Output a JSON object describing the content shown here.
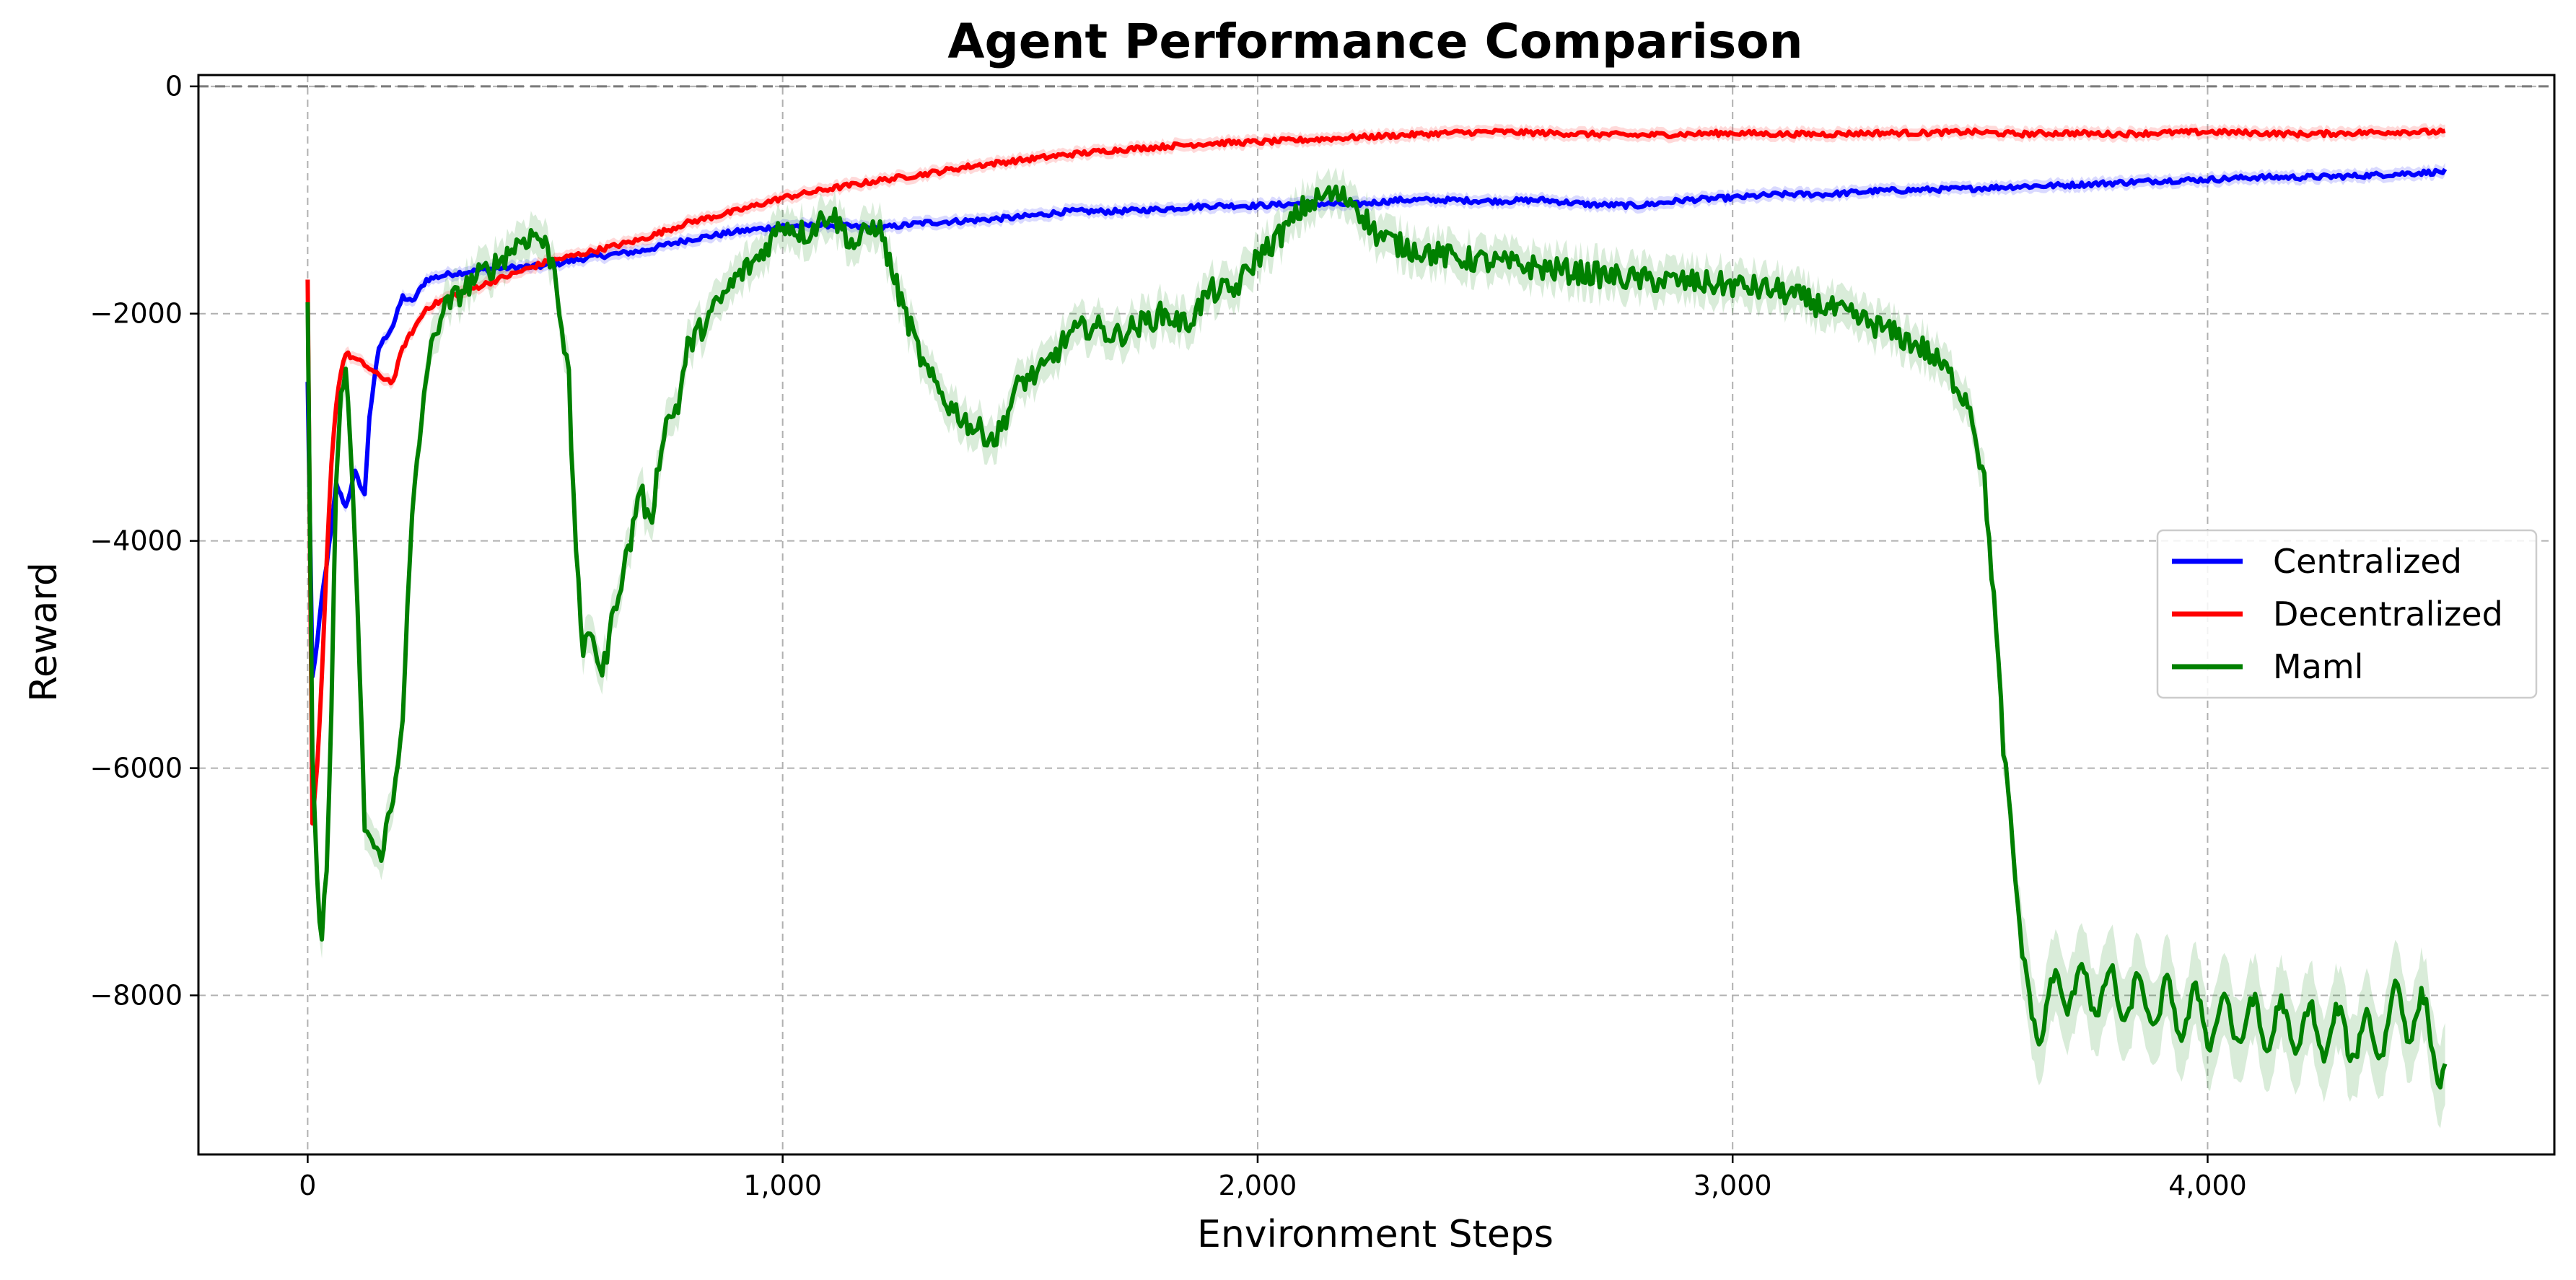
{
  "chart_data": {
    "type": "line",
    "title": "Agent Performance Comparison",
    "xlabel": "Environment Steps",
    "ylabel": "Reward",
    "xlim": [
      -230,
      4730
    ],
    "ylim": [
      -9400,
      100
    ],
    "xticks": [
      0,
      1000,
      2000,
      3000,
      4000
    ],
    "xtick_labels": [
      "0",
      "1,000",
      "2,000",
      "3,000",
      "4,000"
    ],
    "yticks": [
      0,
      -2000,
      -4000,
      -6000,
      -8000
    ],
    "ytick_labels": [
      "0",
      "−2000",
      "−4000",
      "−6000",
      "−8000"
    ],
    "grid": true,
    "reference_line": {
      "y": 0,
      "style": "dashed"
    },
    "legend": {
      "position": "right",
      "entries": [
        "Centralized",
        "Decentralized",
        "Maml"
      ]
    },
    "series": [
      {
        "name": "Centralized",
        "color": "#0000ff",
        "x": [
          0,
          10,
          20,
          30,
          50,
          60,
          80,
          100,
          120,
          130,
          150,
          180,
          200,
          220,
          250,
          300,
          400,
          500,
          600,
          700,
          800,
          900,
          1000,
          1100,
          1200,
          1300,
          1400,
          1500,
          1600,
          1700,
          1800,
          1900,
          2000,
          2100,
          2200,
          2300,
          2400,
          2500,
          2600,
          2700,
          2800,
          2900,
          3000,
          3100,
          3200,
          3300,
          3400,
          3500,
          3600,
          3700,
          3800,
          3900,
          4000,
          4100,
          4200,
          4300,
          4400,
          4500
        ],
        "y": [
          -2600,
          -5200,
          -4900,
          -4500,
          -3900,
          -3500,
          -3700,
          -3400,
          -3600,
          -2900,
          -2300,
          -2100,
          -1850,
          -1900,
          -1700,
          -1650,
          -1600,
          -1580,
          -1500,
          -1450,
          -1350,
          -1280,
          -1230,
          -1220,
          -1250,
          -1200,
          -1180,
          -1150,
          -1100,
          -1100,
          -1080,
          -1050,
          -1050,
          -1030,
          -1040,
          -1000,
          -1000,
          -1010,
          -1000,
          -1040,
          -1050,
          -1000,
          -980,
          -950,
          -950,
          -920,
          -910,
          -900,
          -880,
          -870,
          -850,
          -830,
          -820,
          -800,
          -800,
          -790,
          -770,
          -750
        ]
      },
      {
        "name": "Decentralized",
        "color": "#ff0000",
        "x": [
          0,
          10,
          20,
          30,
          40,
          50,
          60,
          70,
          80,
          100,
          120,
          150,
          180,
          200,
          250,
          300,
          400,
          500,
          600,
          700,
          800,
          900,
          1000,
          1100,
          1200,
          1300,
          1400,
          1500,
          1600,
          1700,
          1800,
          1900,
          2000,
          2100,
          2200,
          2300,
          2400,
          2500,
          2600,
          2700,
          2800,
          2900,
          3000,
          3100,
          3200,
          3300,
          3400,
          3500,
          3600,
          3700,
          3800,
          3900,
          4000,
          4100,
          4200,
          4300,
          4400,
          4500
        ],
        "y": [
          -1700,
          -6500,
          -6000,
          -5200,
          -4200,
          -3300,
          -2800,
          -2500,
          -2350,
          -2400,
          -2450,
          -2550,
          -2600,
          -2300,
          -1950,
          -1850,
          -1700,
          -1550,
          -1450,
          -1350,
          -1200,
          -1100,
          -980,
          -900,
          -830,
          -770,
          -700,
          -650,
          -600,
          -560,
          -530,
          -500,
          -490,
          -470,
          -450,
          -430,
          -410,
          -400,
          -410,
          -420,
          -430,
          -420,
          -410,
          -420,
          -420,
          -410,
          -410,
          -400,
          -420,
          -410,
          -420,
          -410,
          -400,
          -410,
          -420,
          -410,
          -400,
          -400
        ]
      },
      {
        "name": "Maml",
        "color": "#008000",
        "x": [
          0,
          10,
          20,
          30,
          40,
          50,
          60,
          70,
          80,
          100,
          120,
          150,
          180,
          200,
          220,
          250,
          280,
          300,
          350,
          400,
          450,
          480,
          500,
          520,
          550,
          560,
          580,
          600,
          620,
          650,
          680,
          700,
          720,
          750,
          780,
          800,
          850,
          900,
          950,
          1000,
          1050,
          1100,
          1150,
          1200,
          1250,
          1300,
          1350,
          1400,
          1450,
          1500,
          1550,
          1600,
          1650,
          1700,
          1750,
          1800,
          1850,
          1900,
          1950,
          2000,
          2050,
          2100,
          2150,
          2200,
          2250,
          2300,
          2400,
          2500,
          2600,
          2700,
          2800,
          2900,
          3000,
          3100,
          3200,
          3300,
          3400,
          3450,
          3500,
          3530,
          3550,
          3570,
          3600,
          3620,
          3650,
          3700,
          3800,
          3900,
          4000,
          4100,
          4200,
          4300,
          4350,
          4400,
          4450,
          4500
        ],
        "y": [
          -1900,
          -6000,
          -7000,
          -7600,
          -6800,
          -5500,
          -3500,
          -2700,
          -2500,
          -4000,
          -6500,
          -6800,
          -6300,
          -5500,
          -3800,
          -2500,
          -2000,
          -1900,
          -1700,
          -1550,
          -1350,
          -1300,
          -1400,
          -1600,
          -2600,
          -3700,
          -5000,
          -4800,
          -5200,
          -4500,
          -4000,
          -3500,
          -3900,
          -3000,
          -2800,
          -2300,
          -2000,
          -1700,
          -1500,
          -1200,
          -1300,
          -1100,
          -1400,
          -1200,
          -1900,
          -2500,
          -2800,
          -3000,
          -3100,
          -2600,
          -2500,
          -2200,
          -2100,
          -2200,
          -2100,
          -2000,
          -2100,
          -1800,
          -1800,
          -1500,
          -1300,
          -1050,
          -950,
          -1000,
          -1300,
          -1400,
          -1500,
          -1550,
          -1600,
          -1650,
          -1700,
          -1720,
          -1750,
          -1800,
          -1950,
          -2100,
          -2300,
          -2500,
          -2800,
          -3500,
          -4500,
          -5800,
          -7200,
          -8100,
          -8200,
          -7900,
          -8000,
          -8100,
          -8200,
          -8250,
          -8300,
          -8350,
          -8400,
          -8100,
          -8200,
          -8650
        ]
      }
    ]
  }
}
